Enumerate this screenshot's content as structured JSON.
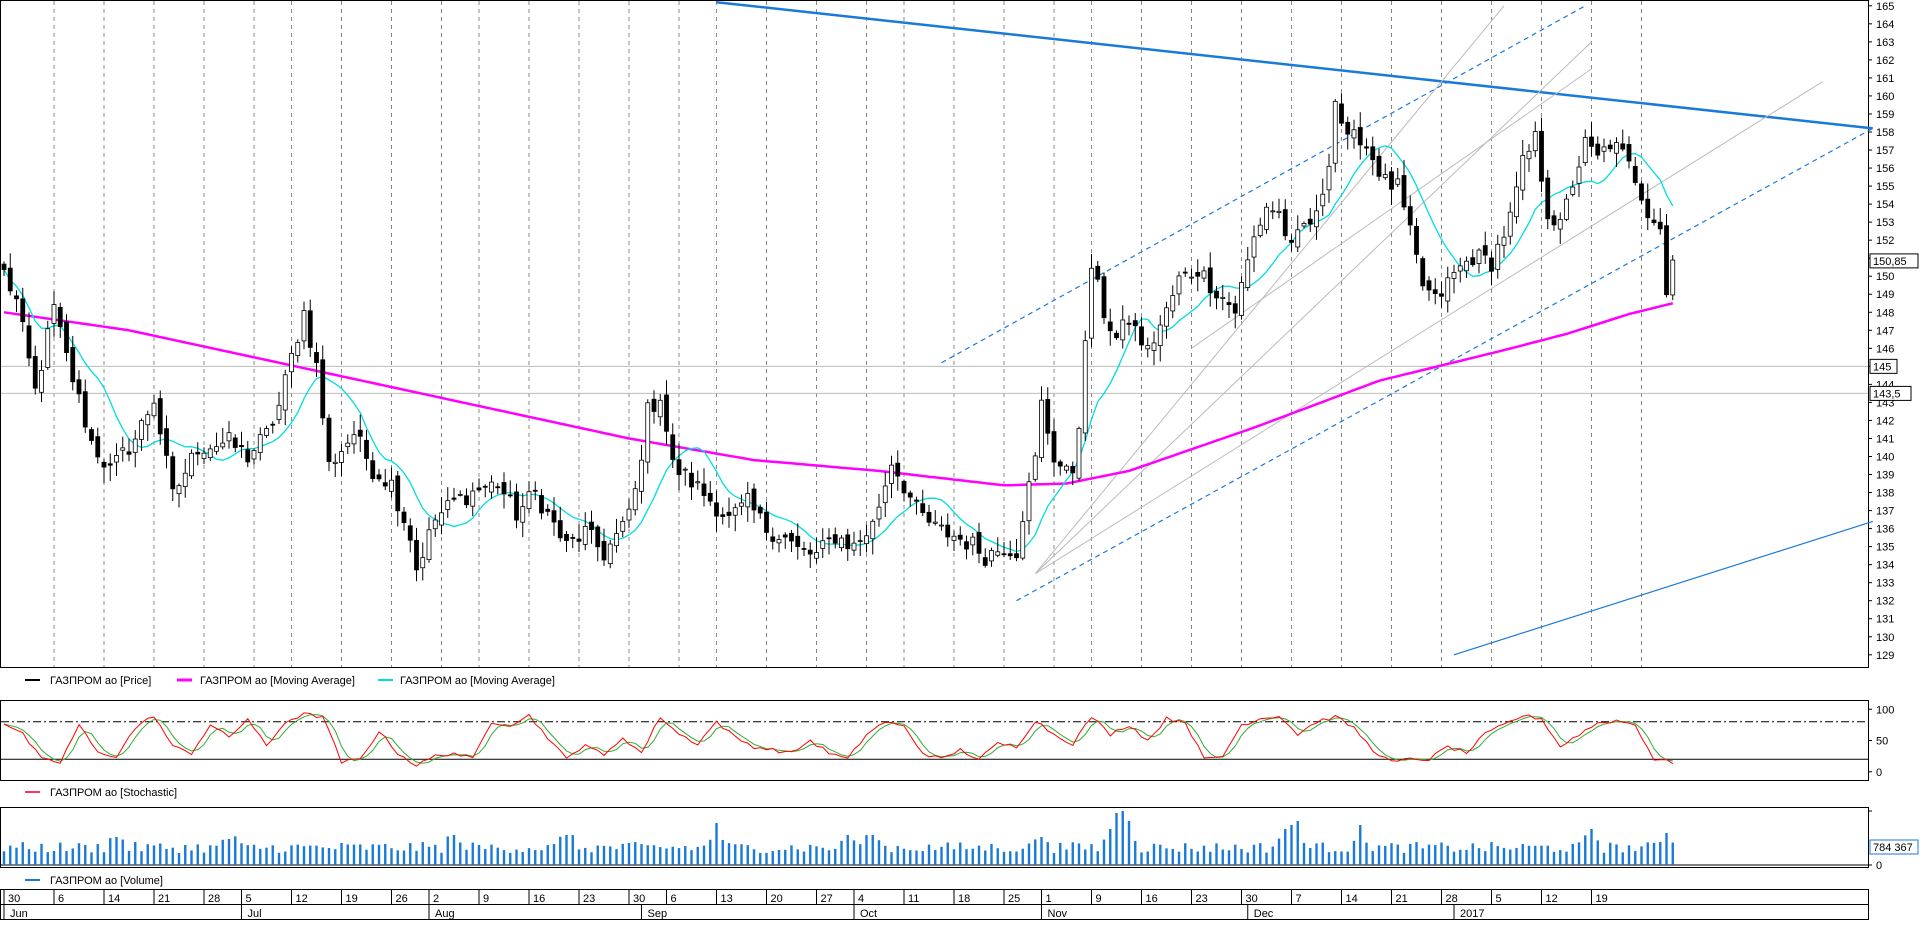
{
  "chart_data": [
    {
      "type": "candlestick",
      "name": "price-panel",
      "yticks": [
        129,
        130,
        131,
        132,
        133,
        134,
        135,
        136,
        137,
        138,
        139,
        140,
        141,
        142,
        143,
        144,
        145,
        146,
        147,
        148,
        149,
        150,
        151,
        152,
        153,
        154,
        155,
        156,
        157,
        158,
        159,
        160,
        161,
        162,
        163,
        164,
        165
      ],
      "ylim": [
        128.6,
        165.1
      ],
      "markers": [
        {
          "label": "150,85",
          "value": 150.85
        },
        {
          "label": "145",
          "value": 145
        },
        {
          "label": "143,5",
          "value": 143.5
        }
      ],
      "horizontal_levels": [
        145,
        143.5
      ],
      "series_anchors": {
        "close": [
          [
            0,
            150.2
          ],
          [
            2,
            148.6
          ],
          [
            5,
            143.6
          ],
          [
            8,
            148.2
          ],
          [
            10,
            145.5
          ],
          [
            14,
            140.8
          ],
          [
            17,
            139.2
          ],
          [
            21,
            141.0
          ],
          [
            24,
            143.2
          ],
          [
            27,
            137.8
          ],
          [
            31,
            140.5
          ],
          [
            36,
            140.8
          ],
          [
            39,
            140.0
          ],
          [
            42,
            141.2
          ],
          [
            44,
            142.8
          ],
          [
            46,
            145.5
          ],
          [
            48,
            148.0
          ],
          [
            50,
            145.0
          ],
          [
            52,
            139.5
          ],
          [
            56,
            141.3
          ],
          [
            59,
            139.3
          ],
          [
            62,
            138.5
          ],
          [
            65,
            135.6
          ],
          [
            66,
            133.8
          ],
          [
            69,
            136.5
          ],
          [
            72,
            137.5
          ],
          [
            76,
            138.2
          ],
          [
            79,
            138.5
          ],
          [
            82,
            136.8
          ],
          [
            85,
            138.0
          ],
          [
            90,
            135.0
          ],
          [
            93,
            135.8
          ],
          [
            96,
            134.6
          ],
          [
            99,
            136.0
          ],
          [
            101,
            138.0
          ],
          [
            103,
            142.5
          ],
          [
            105,
            143.4
          ],
          [
            107,
            139.5
          ],
          [
            110,
            138.6
          ],
          [
            113,
            137.6
          ],
          [
            116,
            136.5
          ],
          [
            119,
            137.4
          ],
          [
            122,
            136.0
          ],
          [
            125,
            135.5
          ],
          [
            127,
            134.8
          ],
          [
            130,
            134.5
          ],
          [
            133,
            135.6
          ],
          [
            136,
            135.0
          ],
          [
            139,
            136.2
          ],
          [
            141,
            138.5
          ],
          [
            142,
            139.8
          ],
          [
            144,
            138.4
          ],
          [
            146,
            137.0
          ],
          [
            149,
            136.0
          ],
          [
            152,
            135.6
          ],
          [
            155,
            135.1
          ],
          [
            157,
            134.5
          ],
          [
            160,
            135.0
          ],
          [
            162,
            134.8
          ],
          [
            163,
            136.8
          ],
          [
            165,
            139.8
          ],
          [
            166,
            142.9
          ],
          [
            168,
            140.0
          ],
          [
            170,
            139.0
          ],
          [
            171,
            139.3
          ],
          [
            172,
            142.0
          ],
          [
            173,
            146.0
          ],
          [
            174,
            150.6
          ],
          [
            176,
            148.0
          ],
          [
            178,
            146.5
          ],
          [
            180,
            147.6
          ],
          [
            183,
            145.8
          ],
          [
            186,
            148.0
          ],
          [
            188,
            149.8
          ],
          [
            191,
            150.4
          ],
          [
            194,
            149.2
          ],
          [
            197,
            148.1
          ],
          [
            200,
            152.1
          ],
          [
            202,
            153.9
          ],
          [
            204,
            153.5
          ],
          [
            206,
            151.4
          ],
          [
            208,
            152.8
          ],
          [
            210,
            153.2
          ],
          [
            211,
            154.8
          ],
          [
            212,
            156.6
          ],
          [
            213,
            159.8
          ],
          [
            215,
            157.4
          ],
          [
            217,
            157.8
          ],
          [
            219,
            156.6
          ],
          [
            221,
            155.2
          ],
          [
            223,
            154.9
          ],
          [
            225,
            152.3
          ],
          [
            227,
            149.5
          ],
          [
            229,
            148.6
          ],
          [
            232,
            150.1
          ],
          [
            235,
            151.1
          ],
          [
            238,
            150.8
          ],
          [
            241,
            153.2
          ],
          [
            243,
            156.2
          ],
          [
            245,
            157.6
          ],
          [
            247,
            153.6
          ],
          [
            249,
            152.7
          ],
          [
            251,
            155.2
          ],
          [
            253,
            157.3
          ],
          [
            255,
            156.5
          ],
          [
            257,
            157.4
          ],
          [
            259,
            156.7
          ],
          [
            261,
            155.5
          ],
          [
            263,
            153.7
          ],
          [
            265,
            152.8
          ],
          [
            266,
            149.0
          ],
          [
            267,
            150.9
          ]
        ]
      },
      "series": [
        {
          "name": "ГАЗПРОМ ао [Price]",
          "color": "#000000"
        },
        {
          "name": "ГАЗПРОМ ао [Moving Average]",
          "color": "#ff00ff"
        },
        {
          "name": "ГАЗПРОМ ао [Moving Average]",
          "color": "#00dddd"
        }
      ],
      "ma_slow_anchors": [
        [
          0,
          148.0
        ],
        [
          20,
          147.0
        ],
        [
          40,
          145.5
        ],
        [
          60,
          144.0
        ],
        [
          80,
          142.5
        ],
        [
          100,
          141.0
        ],
        [
          120,
          139.8
        ],
        [
          140,
          139.2
        ],
        [
          160,
          138.4
        ],
        [
          170,
          138.5
        ],
        [
          180,
          139.2
        ],
        [
          200,
          141.6
        ],
        [
          220,
          144.2
        ],
        [
          240,
          145.9
        ],
        [
          250,
          146.8
        ],
        [
          260,
          147.9
        ],
        [
          267,
          148.5
        ]
      ],
      "ma_fast_period": 10,
      "trendlines": [
        {
          "kind": "resistance",
          "color": "#1a7ad8",
          "from": [
            114,
            165.2
          ],
          "to": [
            299,
            158.2
          ]
        },
        {
          "kind": "support",
          "color": "#1a7ad8",
          "from": [
            232,
            129.0
          ],
          "to": [
            299,
            136.4
          ]
        },
        {
          "kind": "channel-upper",
          "color": "#1a7ad8",
          "style": "dashed",
          "from": [
            150,
            145.2
          ],
          "to": [
            253,
            165.0
          ]
        },
        {
          "kind": "channel-lower",
          "color": "#1a7ad8",
          "style": "dashed",
          "from": [
            162,
            132.0
          ],
          "to": [
            299,
            158.2
          ]
        },
        {
          "kind": "fan",
          "color": "#bbbbbb",
          "from": [
            165,
            133.5
          ],
          "to": [
            240,
            165.0
          ]
        },
        {
          "kind": "fan",
          "color": "#bbbbbb",
          "from": [
            165,
            133.5
          ],
          "to": [
            254,
            163.0
          ]
        },
        {
          "kind": "fan",
          "color": "#bbbbbb",
          "from": [
            165,
            133.5
          ],
          "to": [
            291,
            160.8
          ]
        },
        {
          "kind": "fan",
          "color": "#bbbbbb",
          "from": [
            190,
            146.0
          ],
          "to": [
            254,
            161.5
          ]
        }
      ]
    },
    {
      "type": "line",
      "name": "stochastic-panel",
      "yticks": [
        0,
        50,
        100
      ],
      "ylim": [
        -10,
        110
      ],
      "levels": [
        20,
        80
      ],
      "series": [
        {
          "name": "ГАЗПРОМ ао [Stochastic]",
          "color": "#ff0000"
        }
      ],
      "anchors": [
        [
          0,
          78
        ],
        [
          3,
          60
        ],
        [
          6,
          20
        ],
        [
          9,
          15
        ],
        [
          12,
          75
        ],
        [
          15,
          30
        ],
        [
          18,
          25
        ],
        [
          21,
          70
        ],
        [
          24,
          90
        ],
        [
          27,
          40
        ],
        [
          30,
          30
        ],
        [
          33,
          75
        ],
        [
          36,
          55
        ],
        [
          39,
          85
        ],
        [
          42,
          40
        ],
        [
          45,
          80
        ],
        [
          48,
          92
        ],
        [
          51,
          88
        ],
        [
          54,
          15
        ],
        [
          57,
          20
        ],
        [
          60,
          65
        ],
        [
          63,
          30
        ],
        [
          66,
          10
        ],
        [
          69,
          25
        ],
        [
          72,
          30
        ],
        [
          75,
          20
        ],
        [
          78,
          80
        ],
        [
          81,
          75
        ],
        [
          84,
          90
        ],
        [
          87,
          55
        ],
        [
          90,
          20
        ],
        [
          93,
          45
        ],
        [
          96,
          25
        ],
        [
          99,
          55
        ],
        [
          102,
          30
        ],
        [
          105,
          88
        ],
        [
          108,
          60
        ],
        [
          111,
          45
        ],
        [
          114,
          80
        ],
        [
          117,
          55
        ],
        [
          120,
          40
        ],
        [
          123,
          35
        ],
        [
          126,
          30
        ],
        [
          129,
          50
        ],
        [
          132,
          30
        ],
        [
          135,
          20
        ],
        [
          138,
          60
        ],
        [
          141,
          80
        ],
        [
          144,
          72
        ],
        [
          147,
          30
        ],
        [
          150,
          20
        ],
        [
          153,
          35
        ],
        [
          156,
          20
        ],
        [
          159,
          45
        ],
        [
          162,
          40
        ],
        [
          165,
          82
        ],
        [
          168,
          60
        ],
        [
          171,
          45
        ],
        [
          174,
          88
        ],
        [
          177,
          60
        ],
        [
          180,
          75
        ],
        [
          183,
          50
        ],
        [
          186,
          85
        ],
        [
          189,
          80
        ],
        [
          192,
          20
        ],
        [
          195,
          25
        ],
        [
          198,
          75
        ],
        [
          201,
          85
        ],
        [
          204,
          90
        ],
        [
          207,
          60
        ],
        [
          210,
          80
        ],
        [
          213,
          88
        ],
        [
          216,
          70
        ],
        [
          219,
          35
        ],
        [
          222,
          15
        ],
        [
          225,
          20
        ],
        [
          228,
          20
        ],
        [
          231,
          40
        ],
        [
          234,
          30
        ],
        [
          237,
          60
        ],
        [
          240,
          75
        ],
        [
          243,
          90
        ],
        [
          246,
          85
        ],
        [
          249,
          40
        ],
        [
          252,
          60
        ],
        [
          255,
          78
        ],
        [
          258,
          82
        ],
        [
          261,
          75
        ],
        [
          264,
          20
        ],
        [
          267,
          15
        ]
      ]
    },
    {
      "type": "bar",
      "name": "volume-panel",
      "marker_label": "784 367",
      "series": [
        {
          "name": "ГАЗПРОМ ао [Volume]",
          "color": "#1a7ad8"
        }
      ],
      "spikes": [
        [
          18,
          1.4
        ],
        [
          36,
          1.3
        ],
        [
          72,
          1.5
        ],
        [
          90,
          1.5
        ],
        [
          114,
          2.1
        ],
        [
          135,
          1.5
        ],
        [
          139,
          1.5
        ],
        [
          166,
          1.4
        ],
        [
          177,
          1.8
        ],
        [
          178,
          2.6
        ],
        [
          179,
          2.8
        ],
        [
          180,
          2.2
        ],
        [
          205,
          1.8
        ],
        [
          206,
          2.0
        ],
        [
          207,
          2.2
        ],
        [
          217,
          2.0
        ],
        [
          254,
          1.8
        ],
        [
          266,
          1.6
        ]
      ]
    },
    {
      "type": "time-axis",
      "day_labels": [
        "30",
        "6",
        "14",
        "21",
        "28",
        "5",
        "12",
        "19",
        "26",
        "2",
        "9",
        "16",
        "23",
        "30",
        "6",
        "13",
        "20",
        "27",
        "4",
        "11",
        "18",
        "25",
        "1",
        "9",
        "16",
        "23",
        "30",
        "7",
        "14",
        "21",
        "28",
        "5",
        "12",
        "19"
      ],
      "day_label_index": [
        0,
        8,
        16,
        24,
        32,
        38,
        46,
        54,
        62,
        68,
        76,
        84,
        92,
        100,
        106,
        114,
        122,
        130,
        136,
        144,
        152,
        160,
        166,
        174,
        182,
        190,
        198,
        206,
        214,
        222,
        230,
        238,
        246,
        254
      ],
      "months": [
        {
          "label": "Jun",
          "index": 0
        },
        {
          "label": "Jul",
          "index": 38
        },
        {
          "label": "Aug",
          "index": 68
        },
        {
          "label": "Sep",
          "index": 102
        },
        {
          "label": "Oct",
          "index": 136
        },
        {
          "label": "Nov",
          "index": 166
        },
        {
          "label": "Dec",
          "index": 199
        },
        {
          "label": "2017",
          "index": 232
        }
      ]
    }
  ]
}
